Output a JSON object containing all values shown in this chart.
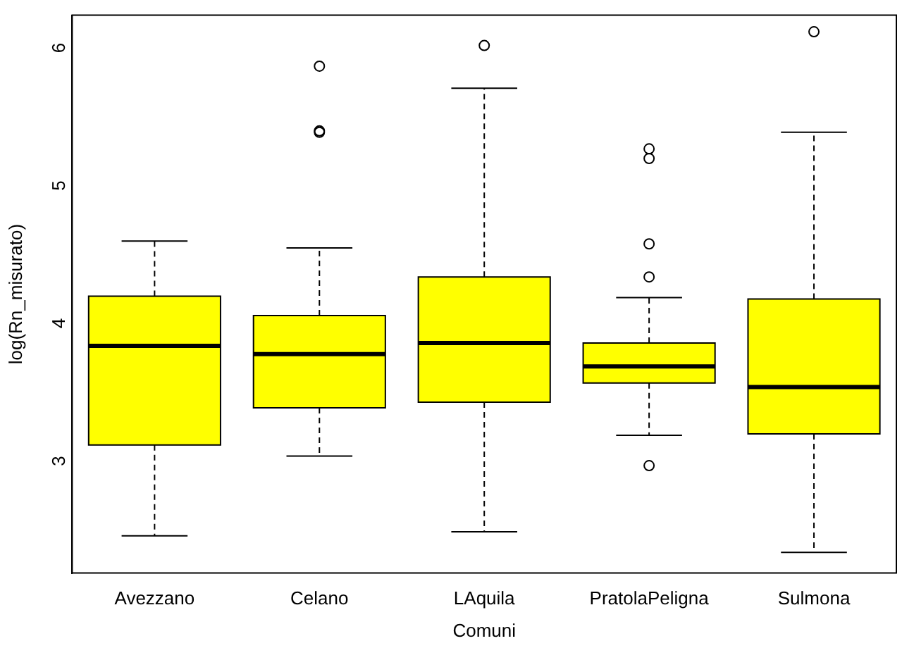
{
  "chart_data": {
    "type": "box",
    "xlabel": "Comuni",
    "ylabel": "log(Rn_misurato)",
    "categories": [
      "Avezzano",
      "Celano",
      "LAquila",
      "PratolaPeligna",
      "Sulmona"
    ],
    "color": "#ffff00",
    "ylim": [
      2.15,
      6.2
    ],
    "yticks": [
      3,
      4,
      5,
      6
    ],
    "boxes": [
      {
        "low": 2.42,
        "q1": 3.08,
        "median": 3.8,
        "q3": 4.16,
        "high": 4.56
      },
      {
        "low": 3.0,
        "q1": 3.35,
        "median": 3.74,
        "q3": 4.02,
        "high": 4.51,
        "outliers": [
          5.83,
          5.36,
          5.35
        ]
      },
      {
        "low": 2.45,
        "q1": 3.39,
        "median": 3.82,
        "q3": 4.3,
        "high": 5.67,
        "outliers": [
          5.98
        ]
      },
      {
        "low": 3.15,
        "q1": 3.53,
        "median": 3.65,
        "q3": 3.82,
        "high": 4.15,
        "outliers": [
          5.23,
          5.16,
          4.54,
          4.3,
          2.93
        ]
      },
      {
        "low": 2.3,
        "q1": 3.16,
        "median": 3.5,
        "q3": 4.14,
        "high": 5.35,
        "outliers": [
          6.08
        ]
      }
    ]
  }
}
